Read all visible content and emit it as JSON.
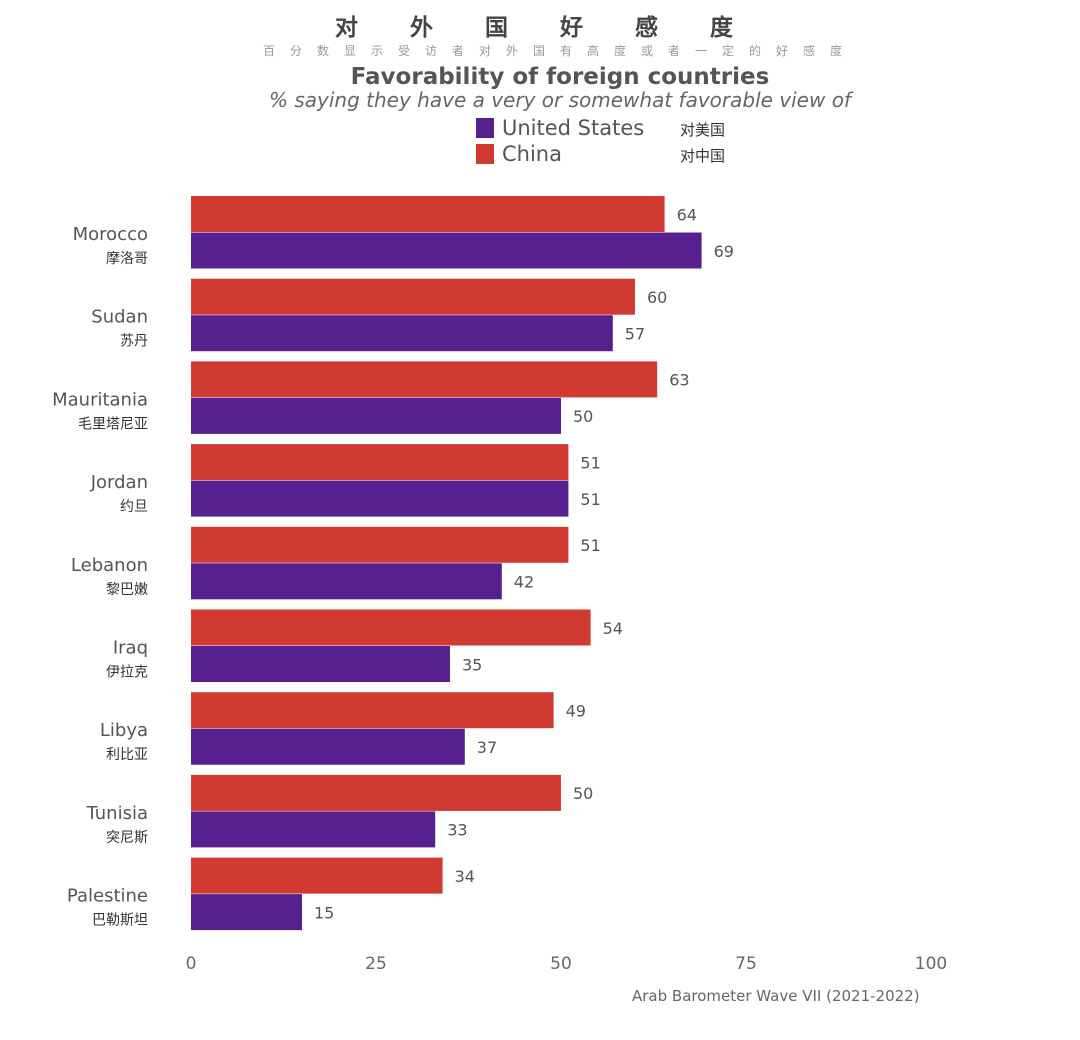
{
  "header": {
    "title_zh": "对外国好感度",
    "subtitle_zh": "百分数显示受访者对外国有高度或者一定的好感度",
    "title_en": "Favorability of foreign countries",
    "subtitle_en": "% saying they have a very or somewhat favorable view of"
  },
  "legend": [
    {
      "label": "United States",
      "label_zh": "对美国",
      "color": "#56208f"
    },
    {
      "label": "China",
      "label_zh": "对中国",
      "color": "#d13a32"
    }
  ],
  "source": "Arab Barometer Wave VII (2021-2022)",
  "chart_data": {
    "type": "bar",
    "orientation": "horizontal",
    "title": "Favorability of foreign countries",
    "categories": [
      "Morocco",
      "Sudan",
      "Mauritania",
      "Jordan",
      "Lebanon",
      "Iraq",
      "Libya",
      "Tunisia",
      "Palestine"
    ],
    "categories_zh": [
      "摩洛哥",
      "苏丹",
      "毛里塔尼亚",
      "约旦",
      "黎巴嫩",
      "伊拉克",
      "利比亚",
      "突尼斯",
      "巴勒斯坦"
    ],
    "series": [
      {
        "name": "China",
        "values": [
          64,
          60,
          63,
          51,
          51,
          54,
          49,
          50,
          34
        ]
      },
      {
        "name": "United States",
        "values": [
          69,
          57,
          50,
          51,
          42,
          35,
          37,
          33,
          15
        ]
      }
    ],
    "xlim": [
      0,
      100
    ],
    "xticks": [
      "0",
      "25",
      "50",
      "75",
      "100"
    ],
    "grid": false,
    "legend_position": "top"
  }
}
